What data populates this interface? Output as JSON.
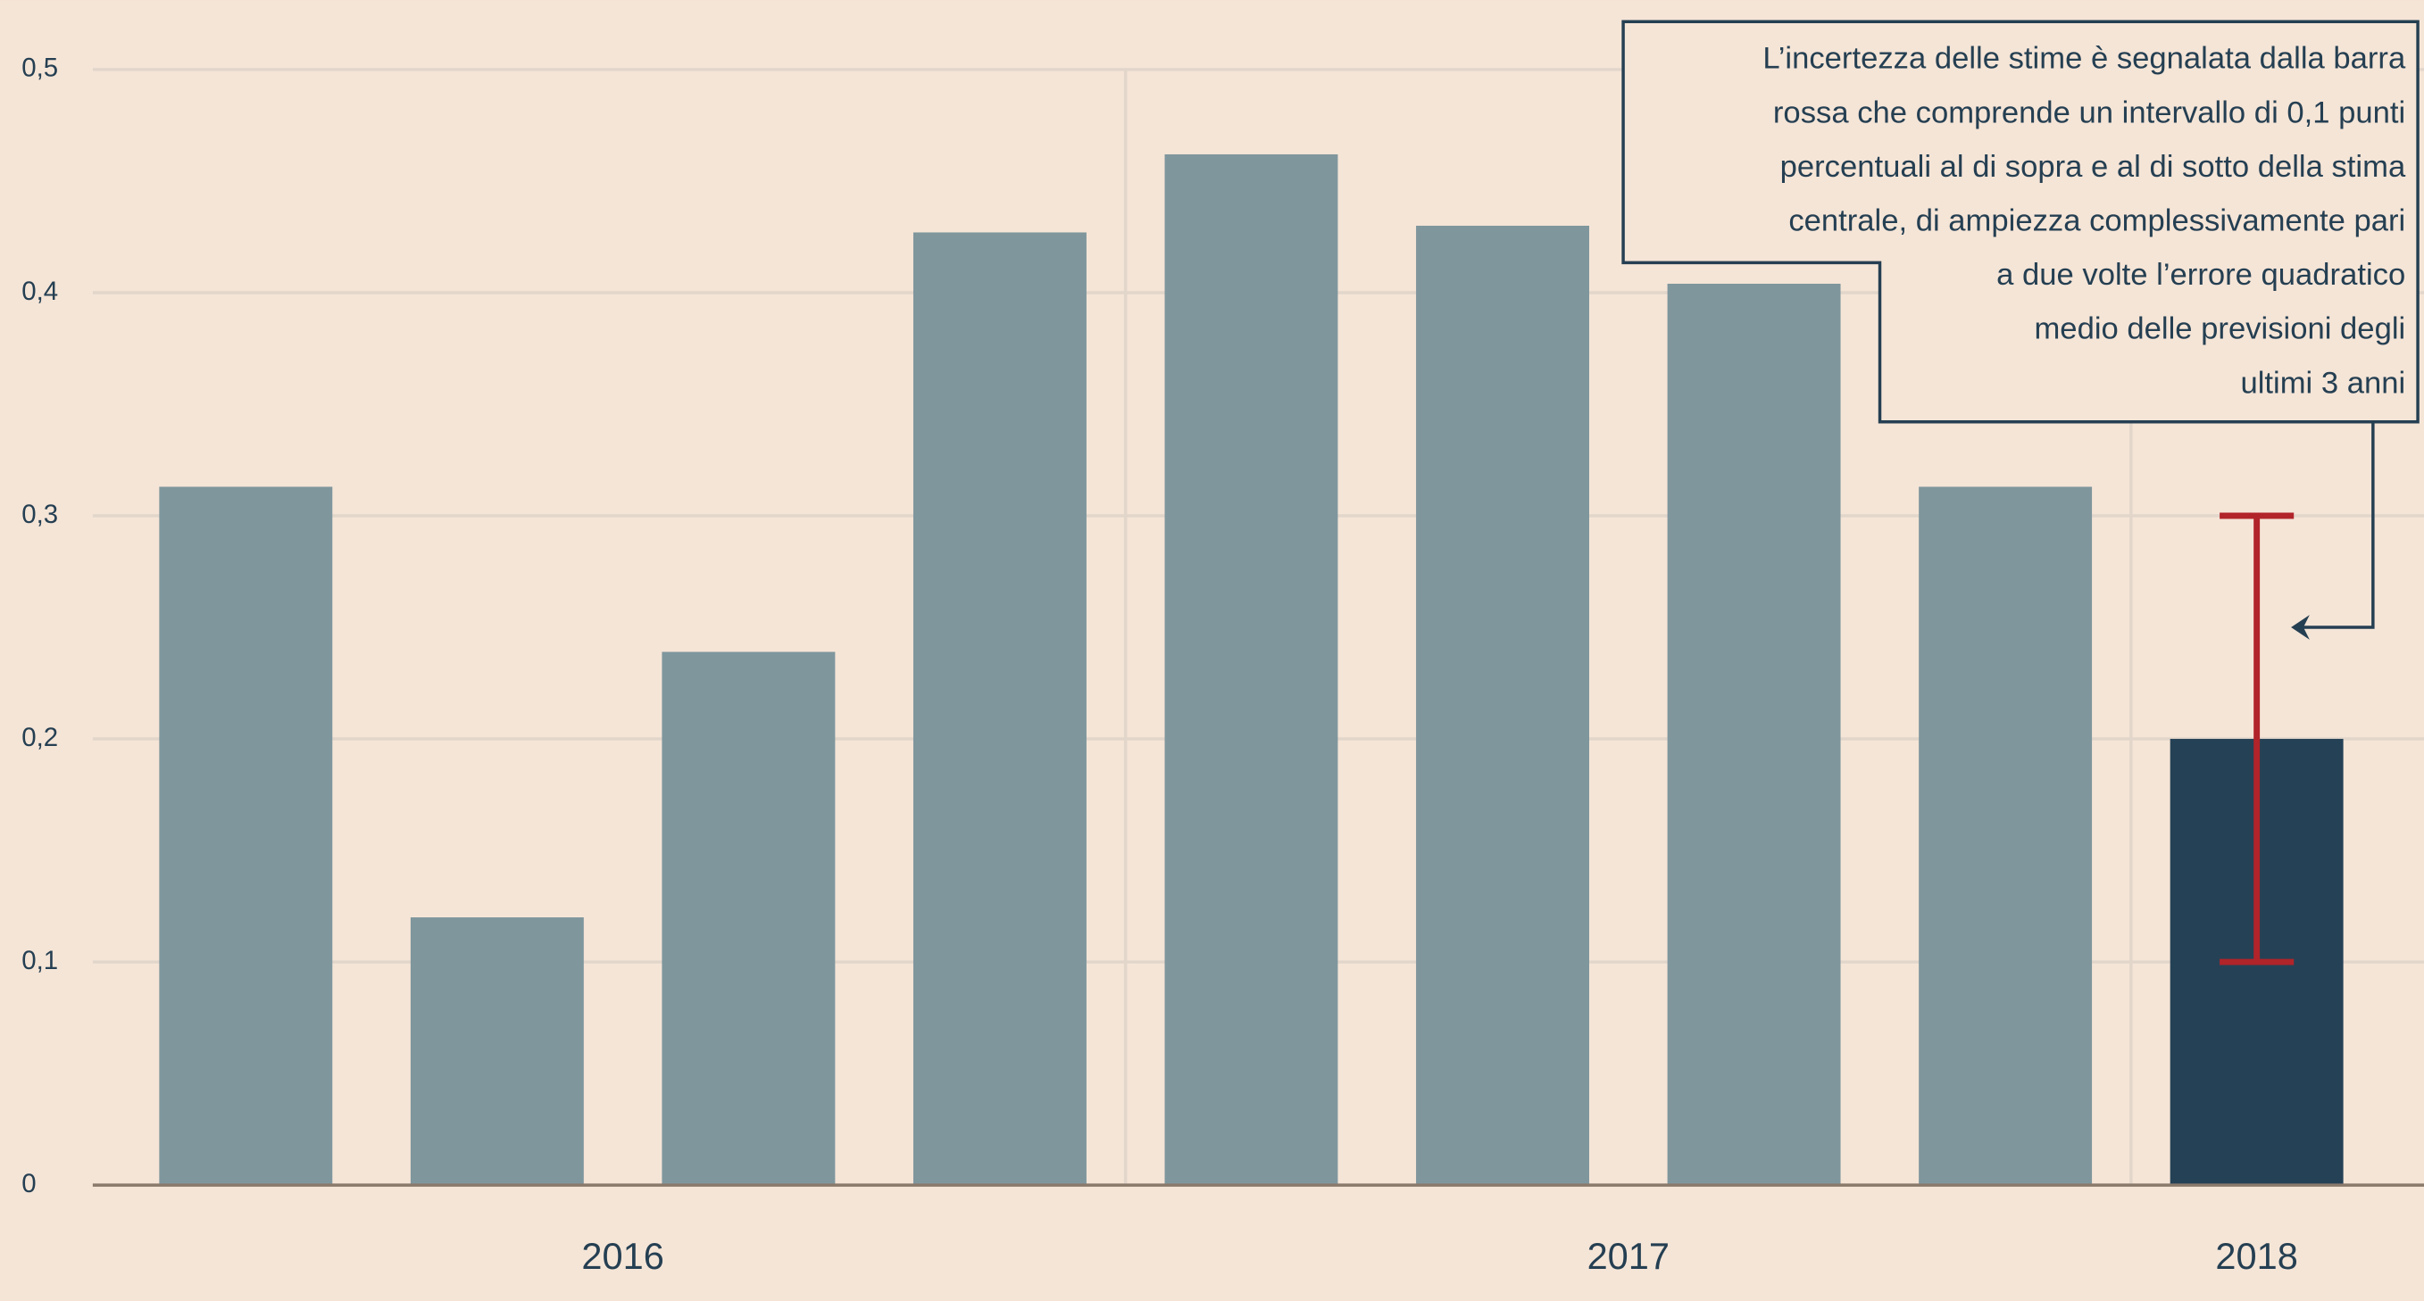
{
  "chart_data": {
    "type": "bar",
    "categories": [
      null,
      null,
      null,
      null,
      null,
      null,
      null,
      null,
      null
    ],
    "values": [
      0.313,
      0.12,
      0.239,
      0.427,
      0.462,
      0.43,
      0.404,
      0.313,
      0.2
    ],
    "colors": [
      "#7f969d",
      "#7f969d",
      "#7f969d",
      "#7f969d",
      "#7f969d",
      "#7f969d",
      "#7f969d",
      "#7f969d",
      "#254156"
    ],
    "errors": [
      null,
      null,
      null,
      null,
      null,
      null,
      null,
      null,
      0.1
    ],
    "error_color": "#b1242a",
    "group_labels": [
      "2016",
      "2017",
      "2018"
    ],
    "group_sizes": [
      4,
      4,
      1
    ],
    "ylim": [
      0,
      0.5
    ],
    "yticks": [
      0,
      {
        "value": 0.1,
        "label": "0,1"
      },
      {
        "value": 0.2,
        "label": "0,2"
      },
      {
        "value": 0.3,
        "label": "0,3"
      },
      {
        "value": 0.4,
        "label": "0,4"
      },
      {
        "value": 0.5,
        "label": "0,5"
      }
    ],
    "grid": true,
    "annotation": [
      "L’incertezza delle stime è segnalata dalla barra",
      "rossa che comprende un intervallo  di 0,1 punti",
      "percentuali al di sopra e al di sotto della stima",
      "centrale, di ampiezza complessivamente pari",
      "a due volte l’errore quadratico",
      "medio delle previsioni degli",
      "ultimi 3 anni"
    ]
  }
}
